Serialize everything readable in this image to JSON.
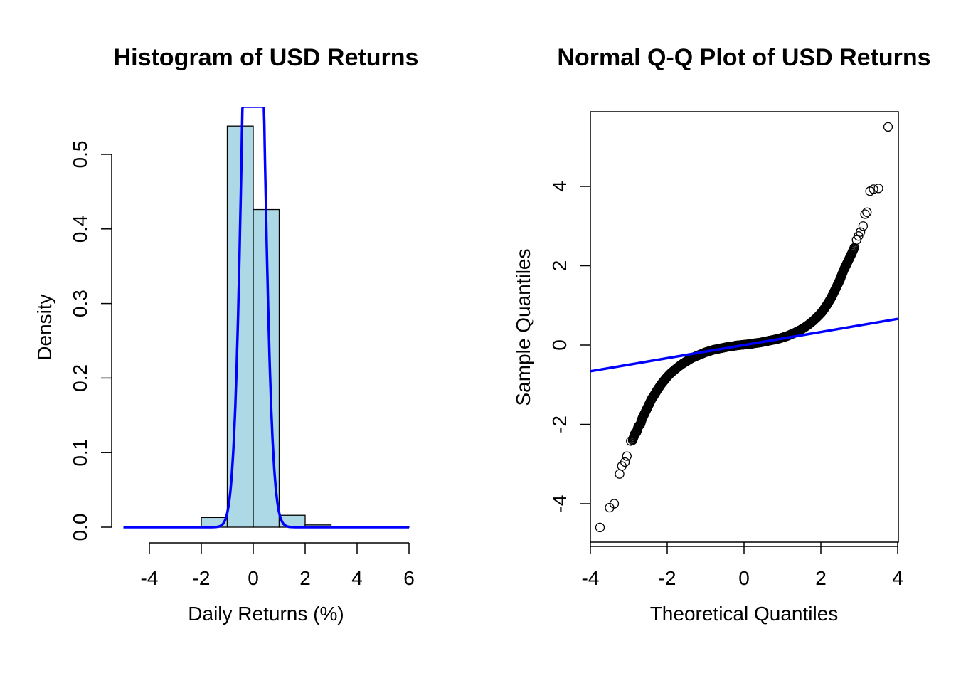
{
  "chart_data": [
    {
      "type": "bar",
      "title": "Histogram of USD Returns",
      "xlabel": "Daily Returns (%)",
      "ylabel": "Density",
      "xlim": [
        -5,
        6
      ],
      "ylim": [
        0,
        0.55
      ],
      "x_ticks": [
        "-4",
        "-2",
        "0",
        "2",
        "4",
        "6"
      ],
      "y_ticks": [
        "0.0",
        "0.1",
        "0.2",
        "0.3",
        "0.4",
        "0.5"
      ],
      "bar_color": "#ADD8E6",
      "curve_color": "#0000FF",
      "bins": [
        {
          "from": -5,
          "to": -4,
          "density": 0.0
        },
        {
          "from": -4,
          "to": -3,
          "density": 0.0004
        },
        {
          "from": -3,
          "to": -2,
          "density": 0.001
        },
        {
          "from": -2,
          "to": -1,
          "density": 0.013
        },
        {
          "from": -1,
          "to": 0,
          "density": 0.538
        },
        {
          "from": 0,
          "to": 1,
          "density": 0.426
        },
        {
          "from": 1,
          "to": 2,
          "density": 0.016
        },
        {
          "from": 2,
          "to": 3,
          "density": 0.003
        },
        {
          "from": 3,
          "to": 4,
          "density": 0.0006
        },
        {
          "from": 4,
          "to": 5,
          "density": 0.0003
        },
        {
          "from": 5,
          "to": 6,
          "density": 0.0001
        }
      ],
      "density_curve": {
        "mean": 0.0,
        "sd": 0.35,
        "from": -5,
        "to": 6
      }
    },
    {
      "type": "scatter",
      "title": "Normal Q-Q Plot of USD Returns",
      "xlabel": "Theoretical Quantiles",
      "ylabel": "Sample Quantiles",
      "xlim": [
        -4,
        4
      ],
      "ylim": [
        -5,
        5.5
      ],
      "x_ticks": [
        "-4",
        "-2",
        "0",
        "2",
        "4"
      ],
      "y_ticks": [
        "-4",
        "-2",
        "0",
        "2",
        "4"
      ],
      "line_color": "#0000FF",
      "qq_line": {
        "intercept": 0.0,
        "slope": 0.165
      },
      "points": [
        [
          -3.75,
          -4.6
        ],
        [
          -3.5,
          -4.1
        ],
        [
          -3.38,
          -4.0
        ],
        [
          -3.24,
          -3.25
        ],
        [
          -3.18,
          -3.05
        ],
        [
          -3.1,
          -2.95
        ],
        [
          -3.05,
          -2.8
        ],
        [
          -2.95,
          -2.42
        ],
        [
          -2.9,
          -2.4
        ],
        [
          -2.85,
          -2.25
        ],
        [
          -2.8,
          -2.2
        ],
        [
          -2.75,
          -2.05
        ],
        [
          -2.7,
          -2.0
        ],
        [
          -2.65,
          -1.85
        ],
        [
          -2.6,
          -1.75
        ],
        [
          -2.55,
          -1.65
        ],
        [
          -2.5,
          -1.55
        ],
        [
          -2.45,
          -1.45
        ],
        [
          -2.4,
          -1.35
        ],
        [
          -2.35,
          -1.28
        ],
        [
          -2.3,
          -1.2
        ],
        [
          -2.25,
          -1.12
        ],
        [
          -2.2,
          -1.05
        ],
        [
          -2.15,
          -0.98
        ],
        [
          -2.1,
          -0.92
        ],
        [
          -2.05,
          -0.86
        ],
        [
          -2.0,
          -0.8
        ],
        [
          -1.9,
          -0.7
        ],
        [
          -1.8,
          -0.62
        ],
        [
          -1.7,
          -0.54
        ],
        [
          -1.6,
          -0.47
        ],
        [
          -1.5,
          -0.41
        ],
        [
          -1.4,
          -0.35
        ],
        [
          -1.3,
          -0.3
        ],
        [
          -1.2,
          -0.26
        ],
        [
          -1.1,
          -0.22
        ],
        [
          -1.0,
          -0.18
        ],
        [
          -0.9,
          -0.15
        ],
        [
          -0.8,
          -0.12
        ],
        [
          -0.7,
          -0.1
        ],
        [
          -0.6,
          -0.08
        ],
        [
          -0.5,
          -0.06
        ],
        [
          -0.4,
          -0.04
        ],
        [
          -0.3,
          -0.03
        ],
        [
          -0.2,
          -0.01
        ],
        [
          -0.1,
          0.0
        ],
        [
          0.0,
          0.01
        ],
        [
          0.1,
          0.02
        ],
        [
          0.2,
          0.03
        ],
        [
          0.3,
          0.05
        ],
        [
          0.4,
          0.06
        ],
        [
          0.5,
          0.08
        ],
        [
          0.6,
          0.1
        ],
        [
          0.7,
          0.12
        ],
        [
          0.8,
          0.14
        ],
        [
          0.9,
          0.16
        ],
        [
          1.0,
          0.19
        ],
        [
          1.1,
          0.22
        ],
        [
          1.2,
          0.26
        ],
        [
          1.3,
          0.3
        ],
        [
          1.4,
          0.35
        ],
        [
          1.5,
          0.4
        ],
        [
          1.6,
          0.46
        ],
        [
          1.7,
          0.53
        ],
        [
          1.8,
          0.61
        ],
        [
          1.9,
          0.7
        ],
        [
          2.0,
          0.8
        ],
        [
          2.05,
          0.86
        ],
        [
          2.1,
          0.93
        ],
        [
          2.15,
          1.0
        ],
        [
          2.2,
          1.08
        ],
        [
          2.25,
          1.16
        ],
        [
          2.3,
          1.25
        ],
        [
          2.35,
          1.35
        ],
        [
          2.4,
          1.45
        ],
        [
          2.45,
          1.55
        ],
        [
          2.5,
          1.65
        ],
        [
          2.55,
          1.78
        ],
        [
          2.6,
          1.9
        ],
        [
          2.65,
          2.0
        ],
        [
          2.7,
          2.1
        ],
        [
          2.75,
          2.2
        ],
        [
          2.8,
          2.3
        ],
        [
          2.87,
          2.45
        ],
        [
          2.93,
          2.65
        ],
        [
          2.98,
          2.75
        ],
        [
          3.03,
          2.85
        ],
        [
          3.1,
          3.0
        ],
        [
          3.15,
          3.3
        ],
        [
          3.2,
          3.35
        ],
        [
          3.28,
          3.88
        ],
        [
          3.37,
          3.93
        ],
        [
          3.5,
          3.95
        ],
        [
          3.75,
          5.5
        ]
      ]
    }
  ]
}
